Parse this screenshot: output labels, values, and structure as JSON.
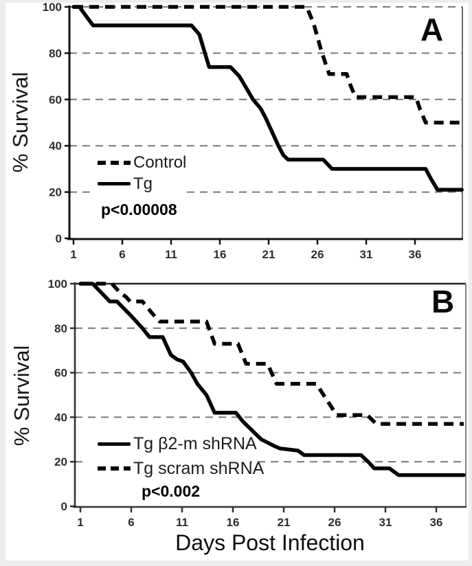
{
  "figure": {
    "panels": [
      {
        "id": "A",
        "corner_label": "A",
        "y_axis_label": "% Survival",
        "x_axis_label": "",
        "p_value": "p<0.00008",
        "legend": [
          {
            "label": "Control",
            "line_style": "dashed"
          },
          {
            "label": "Tg",
            "line_style": "solid"
          }
        ]
      },
      {
        "id": "B",
        "corner_label": "B",
        "y_axis_label": "% Survival",
        "x_axis_label": "Days Post Infection",
        "p_value": "p<0.002",
        "legend": [
          {
            "label": "Tg β2-m shRNA",
            "line_style": "solid"
          },
          {
            "label": "Tg scram shRNA",
            "line_style": "dashed"
          }
        ]
      }
    ]
  },
  "chart_data": [
    {
      "type": "line",
      "subtype": "kaplan-meier-step-survival",
      "panel": "A",
      "title": "",
      "xlabel": "",
      "ylabel": "% Survival",
      "x_ticks": [
        1,
        6,
        11,
        16,
        21,
        26,
        31,
        36
      ],
      "y_ticks": [
        0,
        20,
        40,
        60,
        80,
        100
      ],
      "xlim": [
        1,
        41
      ],
      "ylim": [
        0,
        100
      ],
      "grid": "dashed-horizontal",
      "legend_position": "lower-left",
      "annotation": "p<0.00008",
      "series": [
        {
          "name": "Control",
          "style": "dashed",
          "points": [
            [
              1,
              100
            ],
            [
              24.9,
              100
            ],
            [
              25.6,
              93
            ],
            [
              26.4,
              81
            ],
            [
              27.2,
              71
            ],
            [
              29,
              71
            ],
            [
              29.4,
              66
            ],
            [
              29.9,
              61
            ],
            [
              36.1,
              61
            ],
            [
              36.5,
              56
            ],
            [
              37.1,
              50
            ],
            [
              40.8,
              50
            ]
          ]
        },
        {
          "name": "Tg",
          "style": "solid",
          "points": [
            [
              1,
              100
            ],
            [
              1.6,
              100
            ],
            [
              3,
              92
            ],
            [
              13.1,
              92
            ],
            [
              13.9,
              88
            ],
            [
              14.9,
              74
            ],
            [
              17.1,
              74
            ],
            [
              18,
              70
            ],
            [
              19.4,
              60
            ],
            [
              20.2,
              56
            ],
            [
              20.7,
              52
            ],
            [
              22,
              40
            ],
            [
              22.5,
              36
            ],
            [
              23,
              34
            ],
            [
              26.6,
              34
            ],
            [
              27.5,
              30
            ],
            [
              37.1,
              30
            ],
            [
              37.6,
              26
            ],
            [
              38.3,
              21
            ],
            [
              40.8,
              21
            ]
          ]
        }
      ]
    },
    {
      "type": "line",
      "subtype": "kaplan-meier-step-survival",
      "panel": "B",
      "title": "",
      "xlabel": "Days Post Infection",
      "ylabel": "% Survival",
      "x_ticks": [
        1,
        6,
        11,
        16,
        21,
        26,
        31,
        36
      ],
      "y_ticks": [
        0,
        20,
        40,
        60,
        80,
        100
      ],
      "xlim": [
        1,
        39
      ],
      "ylim": [
        0,
        100
      ],
      "grid": "dashed-horizontal",
      "legend_position": "lower-left",
      "annotation": "p<0.002",
      "series": [
        {
          "name": "Tg β2-m shRNA",
          "style": "solid",
          "points": [
            [
              1,
              100
            ],
            [
              2.2,
              100
            ],
            [
              3.9,
              92
            ],
            [
              4.6,
              92
            ],
            [
              5.9,
              86
            ],
            [
              7.1,
              80
            ],
            [
              7.8,
              76
            ],
            [
              9.1,
              76
            ],
            [
              9.9,
              68
            ],
            [
              10.5,
              66
            ],
            [
              11.1,
              65
            ],
            [
              11.9,
              60
            ],
            [
              12.5,
              55
            ],
            [
              13.4,
              50
            ],
            [
              14.2,
              42
            ],
            [
              16.3,
              42
            ],
            [
              17,
              38
            ],
            [
              18.8,
              30
            ],
            [
              20.1,
              27
            ],
            [
              20.6,
              26
            ],
            [
              22.4,
              25
            ],
            [
              23,
              23
            ],
            [
              28.6,
              23
            ],
            [
              29.3,
              20
            ],
            [
              29.9,
              17
            ],
            [
              31.4,
              17
            ],
            [
              32.3,
              14
            ],
            [
              38.7,
              14
            ]
          ]
        },
        {
          "name": "Tg scram shRNA",
          "style": "dashed",
          "points": [
            [
              1,
              100
            ],
            [
              4.1,
              100
            ],
            [
              4.9,
              96
            ],
            [
              5.5,
              94
            ],
            [
              5.9,
              92
            ],
            [
              7.1,
              92
            ],
            [
              8,
              87
            ],
            [
              8.8,
              83
            ],
            [
              13.4,
              83
            ],
            [
              14.2,
              73
            ],
            [
              16.5,
              73
            ],
            [
              17.3,
              64
            ],
            [
              19.4,
              64
            ],
            [
              20.3,
              55
            ],
            [
              24.2,
              55
            ],
            [
              25.2,
              48
            ],
            [
              26.2,
              41
            ],
            [
              29.2,
              41
            ],
            [
              30.1,
              37
            ],
            [
              38.7,
              37
            ]
          ]
        }
      ]
    }
  ]
}
